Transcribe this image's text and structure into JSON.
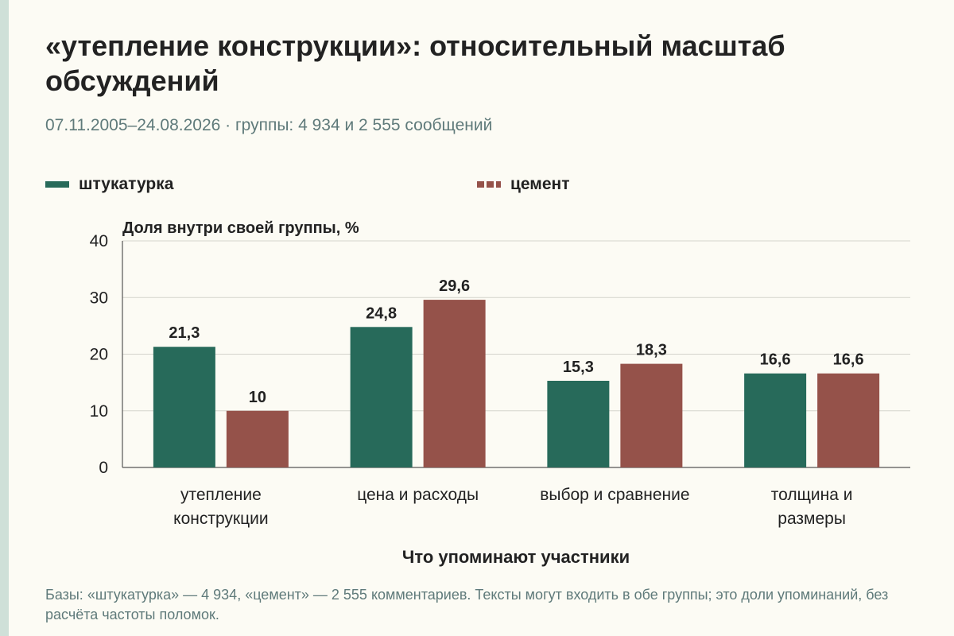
{
  "title": "«утепление конструкции»: относительный масштаб обсуждений",
  "subtitle": "07.11.2005–24.08.2026 · группы: 4 934 и 2 555 сообщений",
  "caption": "Базы: «штукатурка» — 4 934, «цемент» — 2 555 комментариев. Тексты могут входить в обе группы; это доли упоминаний, без расчёта частоты поломок.",
  "chart_data": {
    "type": "bar",
    "title": "«утепление конструкции»: относительный масштаб обсуждений",
    "xlabel": "Что упоминают участники",
    "ylabel": "Доля внутри своей группы, %",
    "ylim": [
      0,
      40
    ],
    "yticks": [
      "0",
      "10",
      "20",
      "30",
      "40"
    ],
    "grid": true,
    "legend_position": "top",
    "categories": [
      [
        "утепление",
        "конструкции"
      ],
      [
        "цена и расходы"
      ],
      [
        "выбор и сравнение"
      ],
      [
        "толщина и",
        "размеры"
      ]
    ],
    "series": [
      {
        "name": "штукатурка",
        "color": "#276a5a",
        "legend_style": "solid",
        "values": [
          21.3,
          24.8,
          15.3,
          16.6
        ],
        "labels": [
          "21,3",
          "24,8",
          "15,3",
          "16,6"
        ]
      },
      {
        "name": "цемент",
        "color": "#95524a",
        "legend_style": "dashed",
        "values": [
          10,
          29.6,
          18.3,
          16.6
        ],
        "labels": [
          "10",
          "29,6",
          "18,3",
          "16,6"
        ]
      }
    ]
  }
}
